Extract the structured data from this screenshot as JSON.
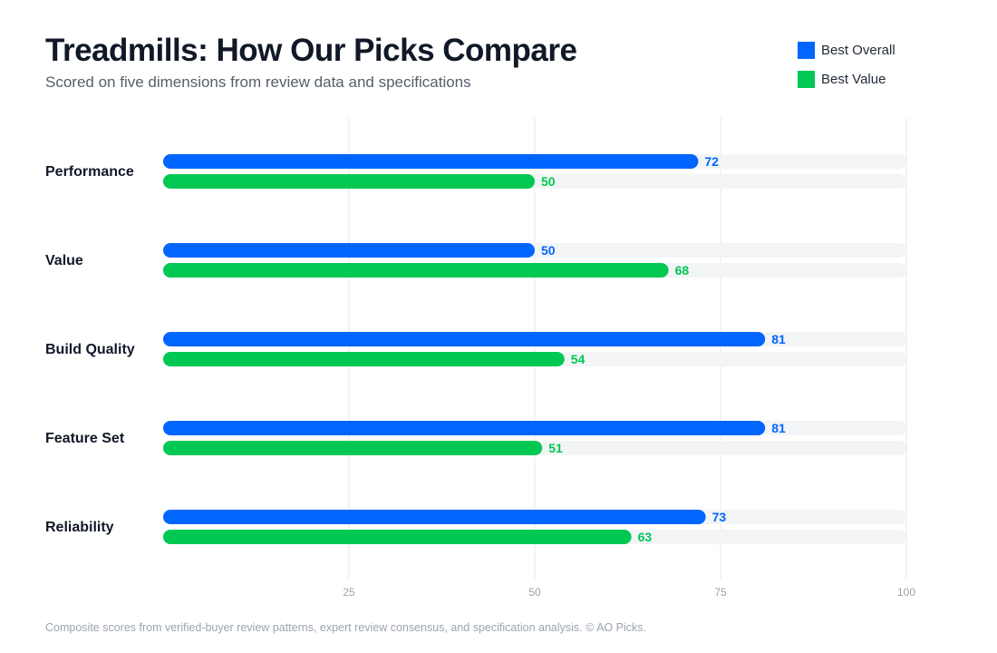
{
  "header": {
    "title": "Treadmills: How Our Picks Compare",
    "subtitle": "Scored on five dimensions from review data and specifications"
  },
  "footer": {
    "note": "Composite scores from verified-buyer review patterns, expert review consensus, and specification analysis. © AO Picks."
  },
  "colors": {
    "best_overall": "#0066ff",
    "best_value": "#00c853",
    "track": "#f3f4f6",
    "grid": "#e5e7eb"
  },
  "chart_data": {
    "type": "bar",
    "orientation": "horizontal",
    "categories": [
      "Performance",
      "Value",
      "Build Quality",
      "Feature Set",
      "Reliability"
    ],
    "series": [
      {
        "name": "Best Overall",
        "values": [
          72,
          50,
          81,
          81,
          73
        ]
      },
      {
        "name": "Best Value",
        "values": [
          50,
          68,
          54,
          51,
          63
        ]
      }
    ],
    "xlim": [
      0,
      100
    ],
    "xticks": [
      25,
      50,
      75,
      100
    ],
    "grid": true,
    "legend_position": "top-right",
    "title": "Treadmills: How Our Picks Compare",
    "subtitle": "Scored on five dimensions from review data and specifications"
  }
}
